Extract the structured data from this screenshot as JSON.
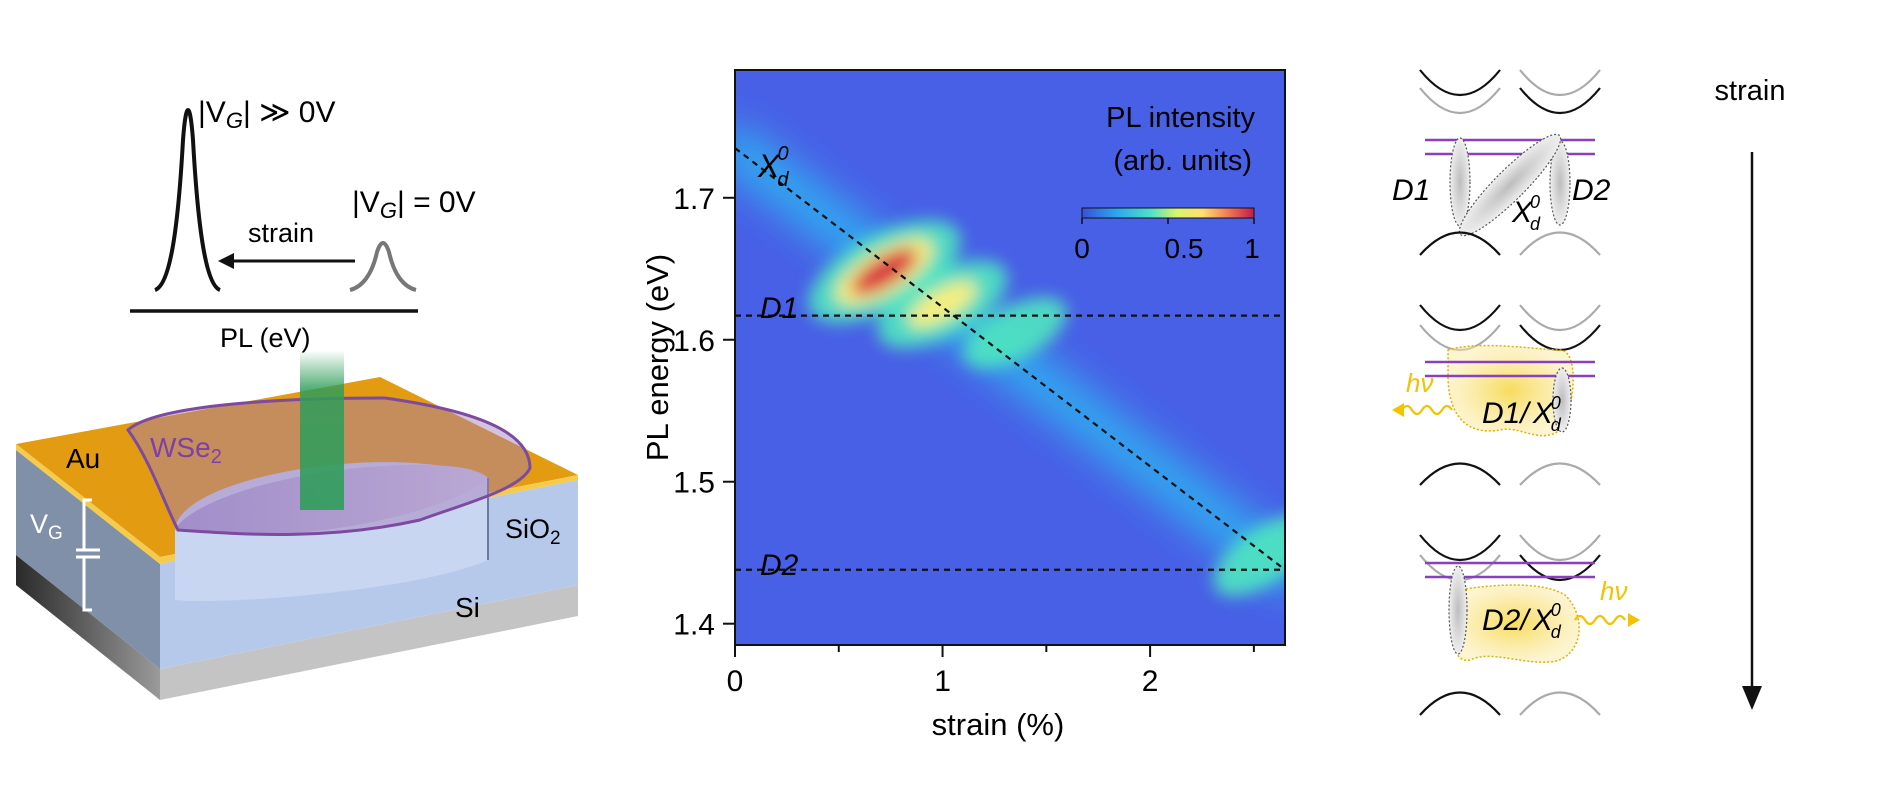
{
  "left_panel": {
    "peak_high_label": "|V",
    "peak_high_sub": "G",
    "peak_high_rest": "| ≫ 0V",
    "peak_zero_label": "|V",
    "peak_zero_sub": "G",
    "peak_zero_rest": "| = 0V",
    "strain_arrow_label": "strain",
    "axis_label": "PL (eV)",
    "au_label": "Au",
    "wse2_label": "WSe",
    "wse2_sub": "2",
    "vg_label": "V",
    "vg_sub": "G",
    "sio2_label": "SiO",
    "sio2_sub": "2",
    "si_label": "Si"
  },
  "chart_data": {
    "type": "heatmap",
    "xlabel": "strain (%)",
    "ylabel": "PL energy (eV)",
    "xlim": [
      0,
      2.65
    ],
    "ylim": [
      1.385,
      1.79
    ],
    "x_ticks": [
      0,
      1,
      2
    ],
    "x_minor_ticks": [
      0.5,
      1.5,
      2.5
    ],
    "y_ticks": [
      1.4,
      1.5,
      1.6,
      1.7
    ],
    "colorbar": {
      "title_line1": "PL intensity",
      "title_line2": "(arb. units)",
      "ticks": [
        "0",
        "0.5",
        "1"
      ],
      "range": [
        0,
        1
      ]
    },
    "lines": [
      {
        "name": "X_d^0",
        "kind": "diagonal",
        "x": [
          0,
          2.65
        ],
        "y": [
          1.735,
          1.438
        ]
      },
      {
        "name": "D1",
        "kind": "horizontal",
        "y": 1.617
      },
      {
        "name": "D2",
        "kind": "horizontal",
        "y": 1.438
      }
    ],
    "line_labels": {
      "xd": "X",
      "xd_sub": "d",
      "xd_sup": "0",
      "d1": "D1",
      "d2": "D2"
    },
    "blobs": [
      {
        "x": 0.72,
        "y": 1.648,
        "intensity": 1.0
      },
      {
        "x": 1.0,
        "y": 1.625,
        "intensity": 0.7
      },
      {
        "x": 1.35,
        "y": 1.605,
        "intensity": 0.35
      },
      {
        "x": 2.55,
        "y": 1.448,
        "intensity": 0.4
      }
    ]
  },
  "right_panel": {
    "strain_label": "strain",
    "d1": "D1",
    "d2": "D2",
    "xd": "X",
    "xd_sub": "d",
    "xd_sup": "0",
    "hv": "hν",
    "mid_label_prefix": "D1/",
    "bottom_label_prefix": "D2/",
    "colors": {
      "purple": "#8a3fc0",
      "yellow": "#f3c300"
    }
  }
}
